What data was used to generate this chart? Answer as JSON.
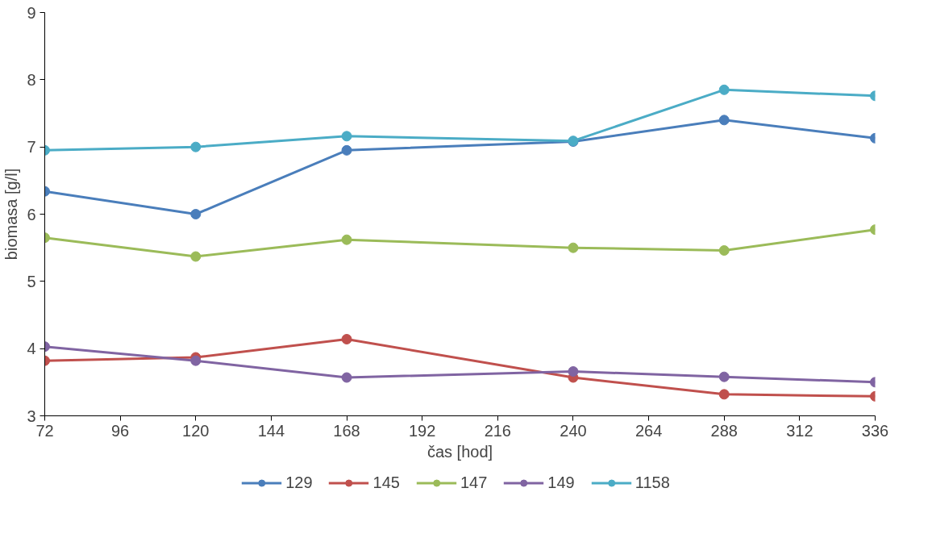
{
  "chart_data": {
    "type": "line",
    "xlabel": "čas [hod]",
    "ylabel": "biomasa [g/l]",
    "x": [
      72,
      120,
      168,
      240,
      288,
      336
    ],
    "series": [
      {
        "name": "129",
        "color": "#4a7ebb",
        "values": [
          6.34,
          6.0,
          6.95,
          7.08,
          7.4,
          7.13
        ]
      },
      {
        "name": "145",
        "color": "#c0504d",
        "values": [
          3.82,
          3.87,
          4.14,
          3.57,
          3.32,
          3.29
        ]
      },
      {
        "name": "147",
        "color": "#9bbb59",
        "values": [
          5.65,
          5.37,
          5.62,
          5.5,
          5.46,
          5.77
        ]
      },
      {
        "name": "149",
        "color": "#8064a2",
        "values": [
          4.03,
          3.82,
          3.57,
          3.66,
          3.58,
          3.5
        ]
      },
      {
        "name": "1158",
        "color": "#4bacc6",
        "values": [
          6.95,
          7.0,
          7.16,
          7.09,
          7.85,
          7.76
        ]
      }
    ],
    "xlim": [
      72,
      336
    ],
    "xticks": [
      72,
      96,
      120,
      144,
      168,
      192,
      216,
      240,
      264,
      288,
      312,
      336
    ],
    "ylim": [
      3,
      9
    ],
    "yticks": [
      3,
      4,
      5,
      6,
      7,
      8,
      9
    ],
    "grid": false,
    "legend": "bottom",
    "marker": "circle",
    "line_style": "solid"
  }
}
